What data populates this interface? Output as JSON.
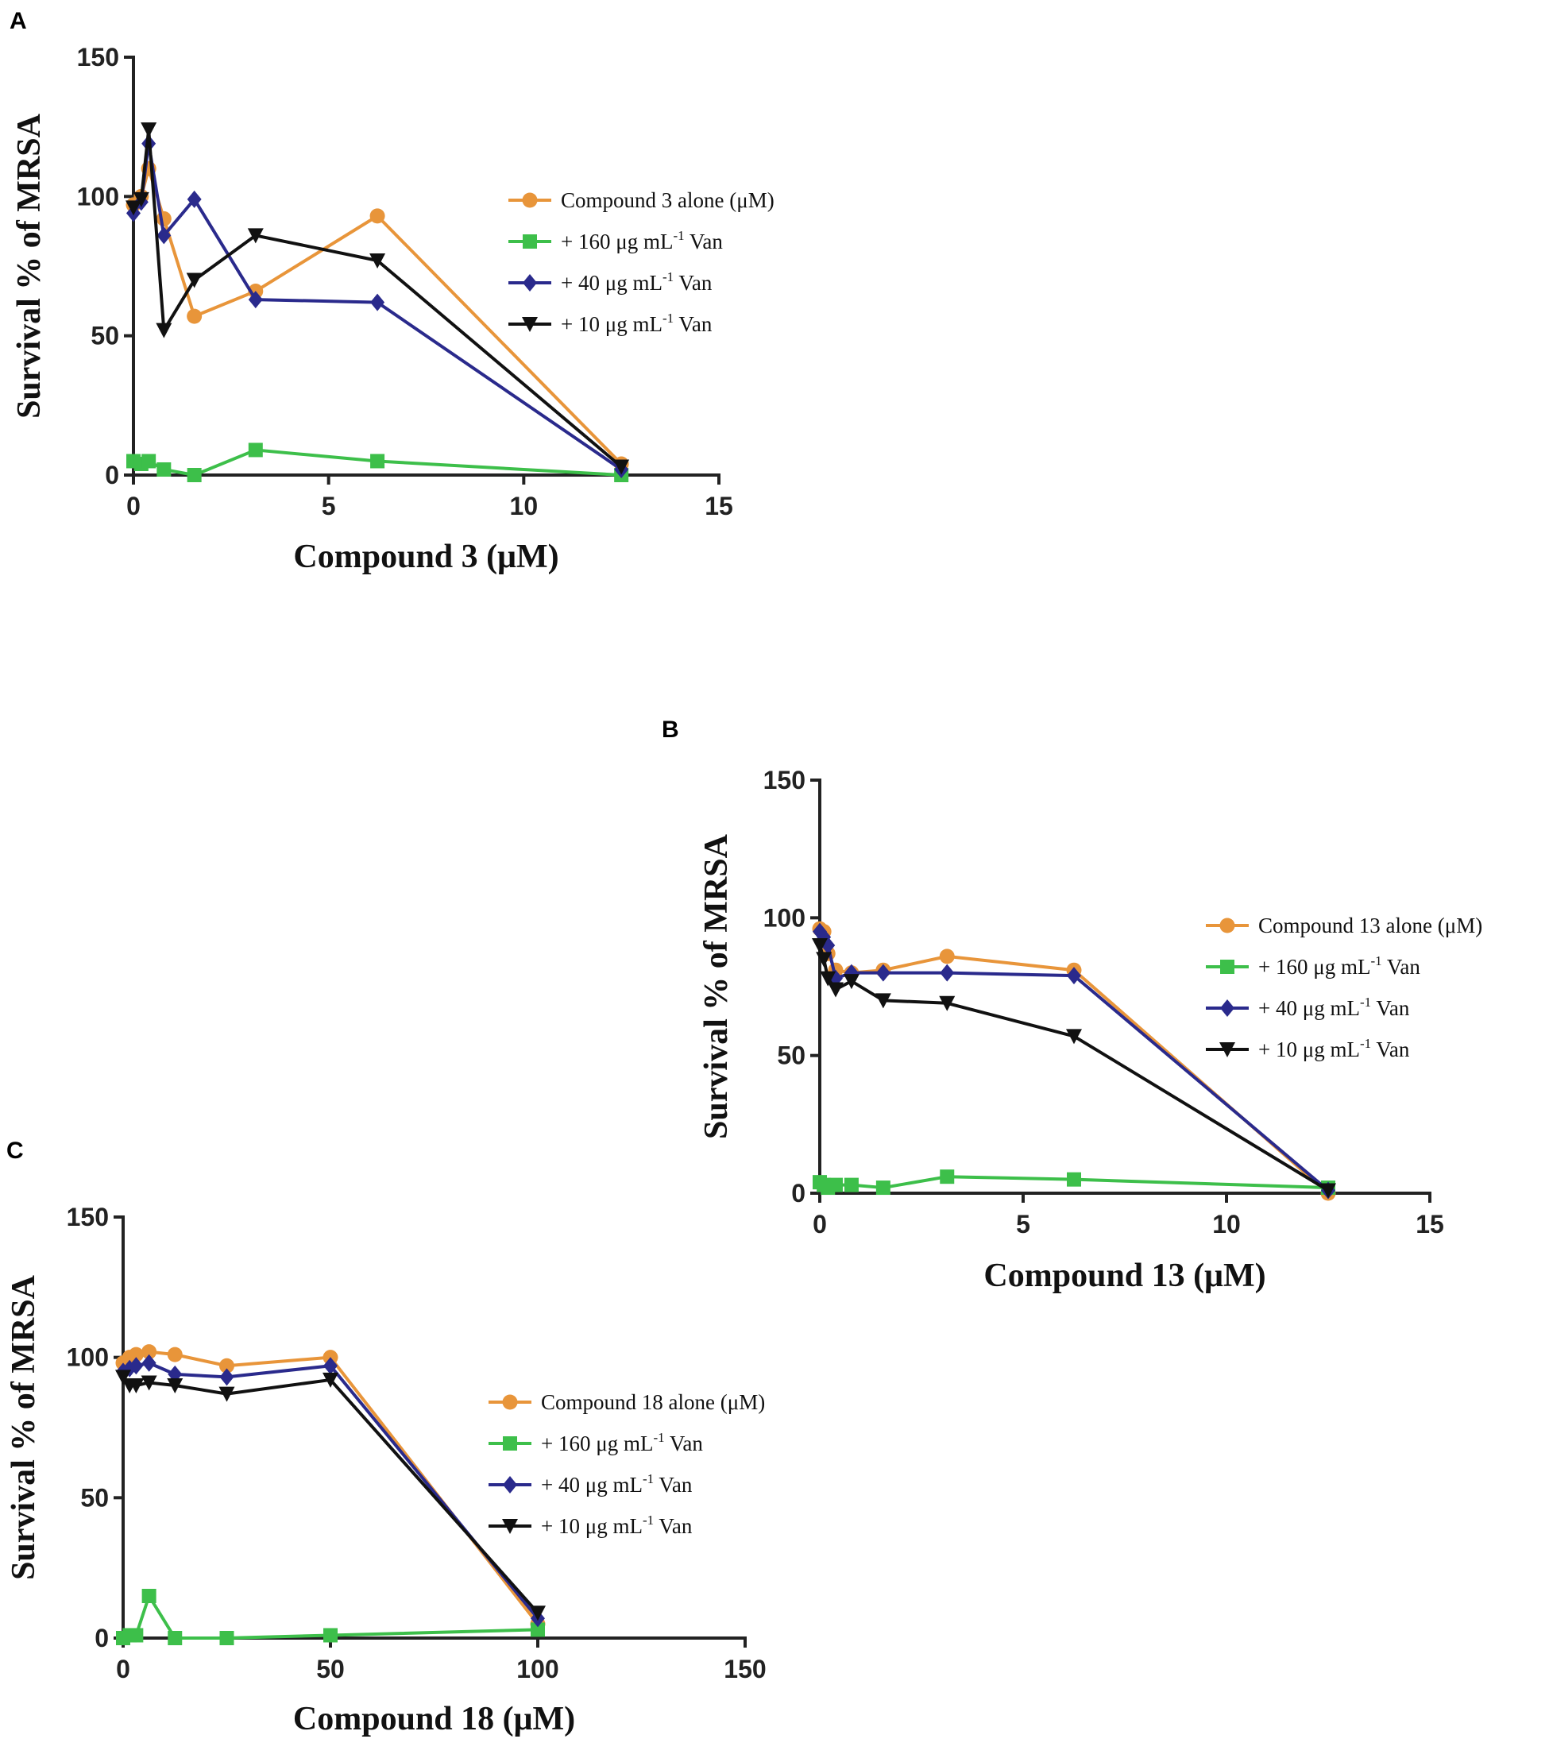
{
  "chart_data": [
    {
      "panel": "A",
      "type": "line",
      "xlabel": "Compound 3 (μM)",
      "ylabel": "Survival % of MRSA",
      "xlim": [
        0,
        15
      ],
      "ylim": [
        0,
        150
      ],
      "xticks": [
        "0",
        "5",
        "10",
        "15"
      ],
      "yticks": [
        "0",
        "50",
        "100",
        "150"
      ],
      "grid": false,
      "legend_position": "right",
      "series": [
        {
          "name": "Compound 3 alone (μM)",
          "legend": {
            "prefix": "Compound 3 alone (μM)",
            "sup": "",
            "suffix": ""
          },
          "color": "#e8953a",
          "marker": "circle",
          "x": [
            0,
            0.2,
            0.39,
            0.78,
            1.56,
            3.13,
            6.25,
            12.5
          ],
          "y": [
            97,
            100,
            110,
            92,
            57,
            66,
            93,
            4
          ]
        },
        {
          "name": "+ 160 μg mL-1 Van",
          "legend": {
            "prefix": "+ 160 μg mL",
            "sup": "-1",
            "suffix": " Van"
          },
          "color": "#3dbf4a",
          "marker": "square",
          "x": [
            0,
            0.2,
            0.39,
            0.78,
            1.56,
            3.13,
            6.25,
            12.5
          ],
          "y": [
            5,
            4,
            5,
            2,
            0,
            9,
            5,
            0
          ]
        },
        {
          "name": "+ 40 μg mL-1 Van",
          "legend": {
            "prefix": "+ 40 μg mL",
            "sup": "-1",
            "suffix": " Van"
          },
          "color": "#2a2a8c",
          "marker": "diamond",
          "x": [
            0,
            0.2,
            0.39,
            0.78,
            1.56,
            3.13,
            6.25,
            12.5
          ],
          "y": [
            94,
            98,
            119,
            86,
            99,
            63,
            62,
            2
          ]
        },
        {
          "name": "+ 10 μg mL-1 Van",
          "legend": {
            "prefix": "+ 10 μg mL",
            "sup": "-1",
            "suffix": " Van"
          },
          "color": "#111111",
          "marker": "triangle-down",
          "x": [
            0,
            0.2,
            0.39,
            0.78,
            1.56,
            3.13,
            6.25,
            12.5
          ],
          "y": [
            96,
            99,
            124,
            52,
            70,
            86,
            77,
            3
          ]
        }
      ]
    },
    {
      "panel": "B",
      "type": "line",
      "xlabel": "Compound 13 (μM)",
      "ylabel": "Survival % of MRSA",
      "xlim": [
        0,
        15
      ],
      "ylim": [
        0,
        150
      ],
      "xticks": [
        "0",
        "5",
        "10",
        "15"
      ],
      "yticks": [
        "0",
        "50",
        "100",
        "150"
      ],
      "grid": false,
      "legend_position": "right",
      "series": [
        {
          "name": "Compound 13 alone (μM)",
          "legend": {
            "prefix": "Compound 13 alone (μM)",
            "sup": "",
            "suffix": ""
          },
          "color": "#e8953a",
          "marker": "circle",
          "x": [
            0,
            0.1,
            0.2,
            0.39,
            0.78,
            1.56,
            3.13,
            6.25,
            12.5
          ],
          "y": [
            96,
            95,
            87,
            81,
            80,
            81,
            86,
            81,
            0
          ]
        },
        {
          "name": "+ 160 μg mL-1 Van",
          "legend": {
            "prefix": "+ 160 μg mL",
            "sup": "-1",
            "suffix": " Van"
          },
          "color": "#3dbf4a",
          "marker": "square",
          "x": [
            0,
            0.1,
            0.2,
            0.39,
            0.78,
            1.56,
            3.13,
            6.25,
            12.5
          ],
          "y": [
            4,
            3,
            2,
            3,
            3,
            2,
            6,
            5,
            2
          ]
        },
        {
          "name": "+ 40 μg mL-1 Van",
          "legend": {
            "prefix": "+ 40 μg mL",
            "sup": "-1",
            "suffix": " Van"
          },
          "color": "#2a2a8c",
          "marker": "diamond",
          "x": [
            0,
            0.1,
            0.2,
            0.39,
            0.78,
            1.56,
            3.13,
            6.25,
            12.5
          ],
          "y": [
            95,
            93,
            90,
            78,
            80,
            80,
            80,
            79,
            1
          ]
        },
        {
          "name": "+ 10 μg mL-1 Van",
          "legend": {
            "prefix": "+ 10 μg mL",
            "sup": "-1",
            "suffix": " Van"
          },
          "color": "#111111",
          "marker": "triangle-down",
          "x": [
            0,
            0.1,
            0.2,
            0.39,
            0.78,
            1.56,
            3.13,
            6.25,
            12.5
          ],
          "y": [
            90,
            85,
            78,
            74,
            77,
            70,
            69,
            57,
            1
          ]
        }
      ]
    },
    {
      "panel": "C",
      "type": "line",
      "xlabel": "Compound 18 (μM)",
      "ylabel": "Survival % of MRSA",
      "xlim": [
        0,
        150
      ],
      "ylim": [
        0,
        150
      ],
      "xticks": [
        "0",
        "50",
        "100",
        "150"
      ],
      "yticks": [
        "0",
        "50",
        "100",
        "150"
      ],
      "grid": false,
      "legend_position": "right",
      "series": [
        {
          "name": "Compound 18 alone (μM)",
          "legend": {
            "prefix": "Compound 18 alone (μM)",
            "sup": "",
            "suffix": ""
          },
          "color": "#e8953a",
          "marker": "circle",
          "x": [
            0,
            1.56,
            3.13,
            6.25,
            12.5,
            25,
            50,
            100
          ],
          "y": [
            98,
            100,
            101,
            102,
            101,
            97,
            100,
            5
          ]
        },
        {
          "name": "+ 160 μg mL-1 Van",
          "legend": {
            "prefix": "+ 160 μg mL",
            "sup": "-1",
            "suffix": " Van"
          },
          "color": "#3dbf4a",
          "marker": "square",
          "x": [
            0,
            1.56,
            3.13,
            6.25,
            12.5,
            25,
            50,
            100
          ],
          "y": [
            0,
            1,
            1,
            15,
            0,
            0,
            1,
            3
          ]
        },
        {
          "name": "+ 40 μg mL-1 Van",
          "legend": {
            "prefix": "+ 40 μg mL",
            "sup": "-1",
            "suffix": " Van"
          },
          "color": "#2a2a8c",
          "marker": "diamond",
          "x": [
            0,
            1.56,
            3.13,
            6.25,
            12.5,
            25,
            50,
            100
          ],
          "y": [
            95,
            96,
            97,
            98,
            94,
            93,
            97,
            7
          ]
        },
        {
          "name": "+ 10 μg mL-1 Van",
          "legend": {
            "prefix": "+ 10 μg mL",
            "sup": "-1",
            "suffix": " Van"
          },
          "color": "#111111",
          "marker": "triangle-down",
          "x": [
            0,
            1.56,
            3.13,
            6.25,
            12.5,
            25,
            50,
            100
          ],
          "y": [
            93,
            90,
            90,
            91,
            90,
            87,
            92,
            9
          ]
        }
      ]
    }
  ]
}
